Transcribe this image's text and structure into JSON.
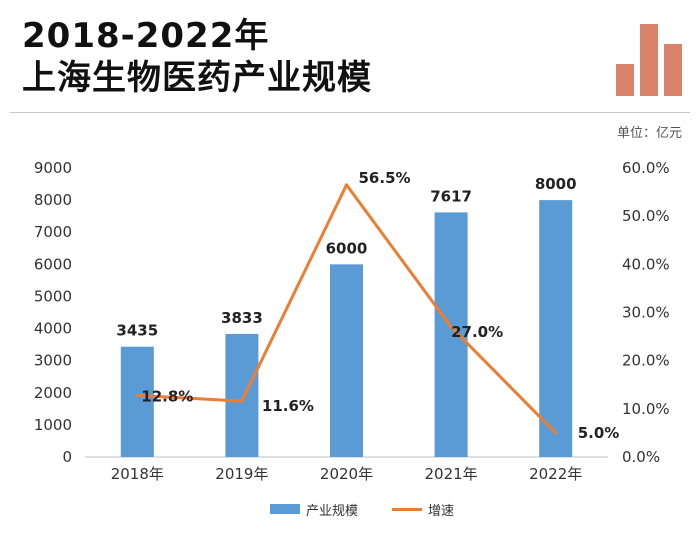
{
  "header": {
    "title_line1": "2018-2022年",
    "title_line2": "上海生物医药产业规模",
    "unit_label": "单位：亿元"
  },
  "colors": {
    "bar": "#5b9bd5",
    "line": "#ed7d31",
    "logo": "#d9836a"
  },
  "chart_data": {
    "type": "bar",
    "categories": [
      "2018年",
      "2019年",
      "2020年",
      "2021年",
      "2022年"
    ],
    "series": [
      {
        "name": "产业规模",
        "type": "bar",
        "axis": "left",
        "values": [
          3435,
          3833,
          6000,
          7617,
          8000
        ]
      },
      {
        "name": "增速",
        "type": "line",
        "axis": "right",
        "values": [
          12.8,
          11.6,
          56.5,
          27.0,
          5.0
        ]
      }
    ],
    "bar_labels": [
      "3435",
      "3833",
      "6000",
      "7617",
      "8000"
    ],
    "line_labels": [
      "12.8%",
      "11.6%",
      "56.5%",
      "27.0%",
      "5.0%"
    ],
    "left_axis": {
      "ylim": [
        0,
        9000
      ],
      "ticks": [
        "0",
        "1000",
        "2000",
        "3000",
        "4000",
        "5000",
        "6000",
        "7000",
        "8000",
        "9000"
      ]
    },
    "right_axis": {
      "ylim": [
        0,
        60
      ],
      "ticks": [
        "0.0%",
        "10.0%",
        "20.0%",
        "30.0%",
        "40.0%",
        "50.0%",
        "60.0%"
      ]
    },
    "legend": {
      "position": "bottom",
      "bar_label": "产业规模",
      "line_label": "增速"
    }
  }
}
